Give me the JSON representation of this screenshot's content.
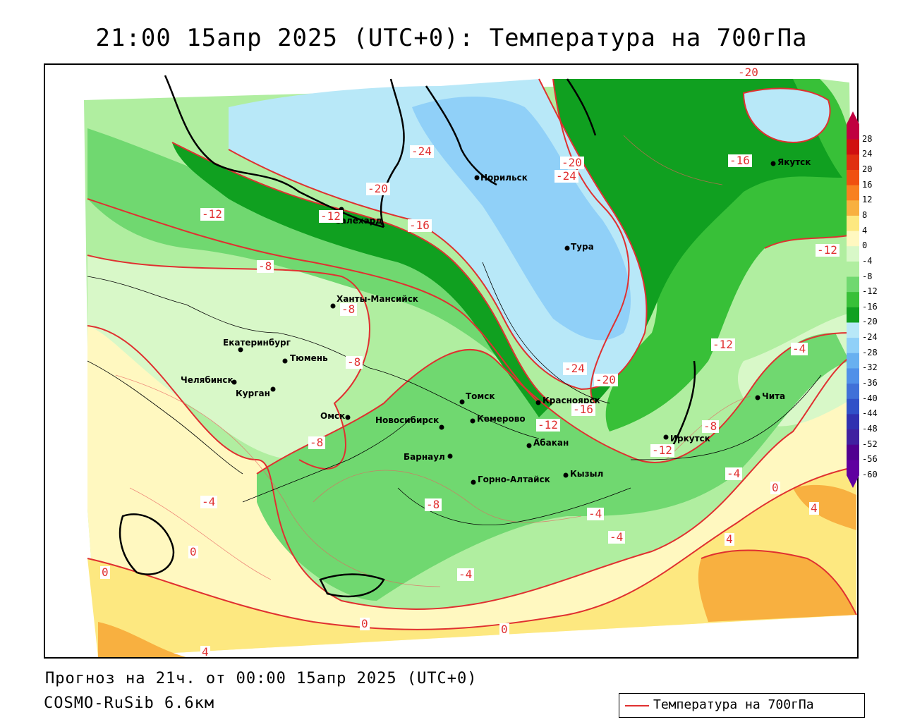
{
  "title": "21:00 15апр 2025 (UTC+0): Температура на 700гПа",
  "footer": {
    "forecast": "Прогноз на 21ч. от 00:00 15апр 2025 (UTC+0)",
    "model": "COSMO-RuSib 6.6км"
  },
  "legend": {
    "label": "Температура на 700гПа",
    "color": "#e03030"
  },
  "colorbar": {
    "labels": [
      "28",
      "24",
      "20",
      "16",
      "12",
      "8",
      "4",
      "0",
      "-4",
      "-8",
      "-12",
      "-16",
      "-20",
      "-24",
      "-28",
      "-32",
      "-36",
      "-40",
      "-44",
      "-48",
      "-52",
      "-56",
      "-60"
    ],
    "colors": [
      "#c00040",
      "#d01010",
      "#e03010",
      "#f05010",
      "#f88020",
      "#f8b040",
      "#fde880",
      "#fff8c0",
      "#d8f8c8",
      "#b0eea0",
      "#70d870",
      "#38c038",
      "#10a020",
      "#b8e8f8",
      "#90d0f8",
      "#68b0f0",
      "#5090e8",
      "#4070d8",
      "#3050c8",
      "#3030b0",
      "#4020a0",
      "#500090",
      "#6000a0"
    ]
  },
  "cities": [
    {
      "name": "Норильск"
    },
    {
      "name": "Тура"
    },
    {
      "name": "Якутск"
    },
    {
      "name": "Салехард"
    },
    {
      "name": "Ханты-Мансийск"
    },
    {
      "name": "Екатеринбург"
    },
    {
      "name": "Тюмень"
    },
    {
      "name": "Челябинск"
    },
    {
      "name": "Курган"
    },
    {
      "name": "Омск"
    },
    {
      "name": "Томск"
    },
    {
      "name": "Новосибирск"
    },
    {
      "name": "Кемерово"
    },
    {
      "name": "Красноярск"
    },
    {
      "name": "Абакан"
    },
    {
      "name": "Барнаул"
    },
    {
      "name": "Горно-Алтайск"
    },
    {
      "name": "Кызыл"
    },
    {
      "name": "Иркутск"
    },
    {
      "name": "Чита"
    }
  ],
  "isotherm_labels": [
    "-20",
    "-16",
    "-24",
    "-20",
    "-24",
    "-20",
    "-12",
    "-12",
    "-16",
    "-8",
    "-8",
    "-8",
    "-12",
    "-4",
    "-24",
    "-20",
    "-16",
    "-12",
    "-8",
    "-12",
    "-4",
    "-8",
    "-4",
    "-8",
    "-4",
    "-4",
    "0",
    "0",
    "4",
    "4",
    "0",
    "-4",
    "0",
    "0",
    "4",
    "-12"
  ],
  "colors": {
    "yellow_light": "#fff8c0",
    "yellow": "#fde880",
    "orange": "#f8b040",
    "green_pale": "#d8f8c8",
    "green_light": "#b0eea0",
    "green_mid": "#70d870",
    "green": "#38c038",
    "green_dark": "#10a020",
    "blue_pale": "#b8e8f8",
    "blue": "#90d0f8",
    "isotherm": "#e03030"
  }
}
